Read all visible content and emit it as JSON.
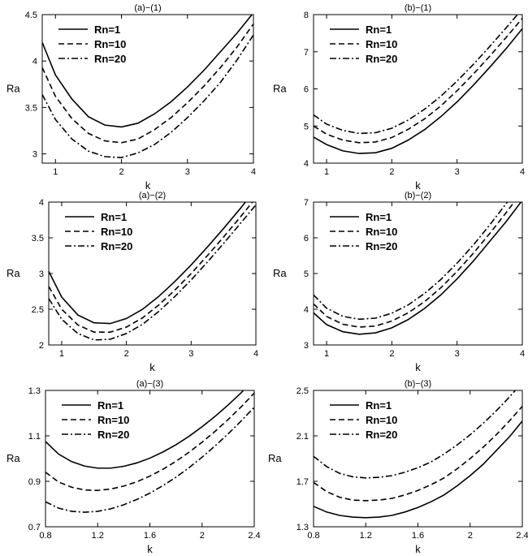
{
  "chart_data": [
    {
      "type": "line",
      "title": "(a)−(1)",
      "xlabel": "k",
      "ylabel": "Ra",
      "xlim": [
        0.8,
        4
      ],
      "ylim": [
        2.9,
        4.5
      ],
      "xticks": [
        1,
        2,
        3,
        4
      ],
      "xtick_labels": [
        "1",
        "2",
        "3",
        "4"
      ],
      "yticks": [
        3,
        3.5,
        4,
        4.5
      ],
      "ytick_labels": [
        "3",
        "3.5",
        "4",
        "4.5"
      ],
      "legend": "top-left",
      "grid": false,
      "x": [
        0.8,
        1.0,
        1.25,
        1.5,
        1.75,
        2.0,
        2.25,
        2.5,
        2.75,
        3.0,
        3.25,
        3.5,
        3.75,
        4.0
      ],
      "series": [
        {
          "name": "Rn=1",
          "style": "solid",
          "values": [
            4.2,
            3.85,
            3.59,
            3.4,
            3.31,
            3.29,
            3.33,
            3.43,
            3.56,
            3.72,
            3.9,
            4.1,
            4.3,
            4.52
          ]
        },
        {
          "name": "Rn=10",
          "style": "dashed",
          "values": [
            3.93,
            3.62,
            3.38,
            3.22,
            3.14,
            3.12,
            3.16,
            3.26,
            3.39,
            3.55,
            3.73,
            3.93,
            4.15,
            4.4
          ]
        },
        {
          "name": "Rn=20",
          "style": "dashdot",
          "values": [
            3.64,
            3.37,
            3.16,
            3.03,
            2.97,
            2.96,
            3.01,
            3.1,
            3.23,
            3.39,
            3.57,
            3.77,
            4.01,
            4.28
          ]
        }
      ]
    },
    {
      "type": "line",
      "title": "(b)−(1)",
      "xlabel": "k",
      "ylabel": "Ra",
      "xlim": [
        0.8,
        4
      ],
      "ylim": [
        4,
        8
      ],
      "xticks": [
        1,
        2,
        3,
        4
      ],
      "xtick_labels": [
        "1",
        "2",
        "3",
        "4"
      ],
      "yticks": [
        4,
        5,
        6,
        7,
        8
      ],
      "ytick_labels": [
        "4",
        "5",
        "6",
        "7",
        "8"
      ],
      "legend": "top-left",
      "grid": false,
      "x": [
        0.8,
        1.0,
        1.25,
        1.5,
        1.75,
        2.0,
        2.25,
        2.5,
        2.75,
        3.0,
        3.25,
        3.5,
        3.75,
        4.0
      ],
      "series": [
        {
          "name": "Rn=1",
          "style": "solid",
          "values": [
            4.7,
            4.5,
            4.33,
            4.26,
            4.28,
            4.4,
            4.62,
            4.9,
            5.25,
            5.65,
            6.1,
            6.58,
            7.08,
            7.62
          ]
        },
        {
          "name": "Rn=10",
          "style": "dashed",
          "values": [
            5.0,
            4.78,
            4.62,
            4.55,
            4.57,
            4.69,
            4.91,
            5.19,
            5.54,
            5.95,
            6.4,
            6.88,
            7.38,
            7.9
          ]
        },
        {
          "name": "Rn=20",
          "style": "dashdot",
          "values": [
            5.3,
            5.05,
            4.88,
            4.8,
            4.82,
            4.94,
            5.16,
            5.45,
            5.8,
            6.21,
            6.66,
            7.14,
            7.64,
            8.15
          ]
        }
      ]
    },
    {
      "type": "line",
      "title": "(a)−(2)",
      "xlabel": "k",
      "ylabel": "Ra",
      "xlim": [
        0.8,
        4
      ],
      "ylim": [
        2,
        4
      ],
      "xticks": [
        1,
        2,
        3,
        4
      ],
      "xtick_labels": [
        "1",
        "2",
        "3",
        "4"
      ],
      "yticks": [
        2,
        2.5,
        3,
        3.5,
        4
      ],
      "ytick_labels": [
        "2",
        "2.5",
        "3",
        "3.5",
        "4"
      ],
      "legend": "top-left",
      "grid": false,
      "x": [
        0.8,
        1.0,
        1.25,
        1.5,
        1.75,
        2.0,
        2.25,
        2.5,
        2.75,
        3.0,
        3.25,
        3.5,
        3.75,
        4.0
      ],
      "series": [
        {
          "name": "Rn=1",
          "style": "solid",
          "values": [
            3.03,
            2.67,
            2.42,
            2.31,
            2.3,
            2.37,
            2.5,
            2.68,
            2.89,
            3.12,
            3.37,
            3.63,
            3.9,
            4.18
          ]
        },
        {
          "name": "Rn=10",
          "style": "dashed",
          "values": [
            2.82,
            2.5,
            2.28,
            2.18,
            2.18,
            2.25,
            2.38,
            2.56,
            2.77,
            3.0,
            3.25,
            3.51,
            3.78,
            4.06
          ]
        },
        {
          "name": "Rn=20",
          "style": "dashdot",
          "values": [
            2.65,
            2.36,
            2.16,
            2.07,
            2.08,
            2.16,
            2.29,
            2.47,
            2.68,
            2.91,
            3.16,
            3.42,
            3.69,
            3.96
          ]
        }
      ]
    },
    {
      "type": "line",
      "title": "(b)−(2)",
      "xlabel": "k",
      "ylabel": "Ra",
      "xlim": [
        0.8,
        4
      ],
      "ylim": [
        3,
        7
      ],
      "xticks": [
        1,
        2,
        3,
        4
      ],
      "xtick_labels": [
        "1",
        "2",
        "3",
        "4"
      ],
      "yticks": [
        3,
        4,
        5,
        6,
        7
      ],
      "ytick_labels": [
        "3",
        "4",
        "5",
        "6",
        "7"
      ],
      "legend": "top-left",
      "grid": false,
      "x": [
        0.8,
        1.0,
        1.25,
        1.5,
        1.75,
        2.0,
        2.25,
        2.5,
        2.75,
        3.0,
        3.25,
        3.5,
        3.75,
        4.0
      ],
      "series": [
        {
          "name": "Rn=1",
          "style": "solid",
          "values": [
            3.9,
            3.57,
            3.37,
            3.3,
            3.34,
            3.48,
            3.71,
            4.02,
            4.4,
            4.85,
            5.35,
            5.9,
            6.45,
            7.05
          ]
        },
        {
          "name": "Rn=10",
          "style": "dashed",
          "values": [
            4.15,
            3.8,
            3.58,
            3.5,
            3.53,
            3.67,
            3.9,
            4.21,
            4.6,
            5.06,
            5.57,
            6.12,
            6.7,
            7.3
          ]
        },
        {
          "name": "Rn=20",
          "style": "dashdot",
          "values": [
            4.4,
            4.03,
            3.8,
            3.72,
            3.75,
            3.89,
            4.12,
            4.44,
            4.83,
            5.29,
            5.8,
            6.36,
            6.95,
            7.55
          ]
        }
      ]
    },
    {
      "type": "line",
      "title": "(a)−(3)",
      "xlabel": "k",
      "ylabel": "Ra",
      "xlim": [
        0.8,
        2.4
      ],
      "ylim": [
        0.7,
        1.3
      ],
      "xticks": [
        0.8,
        1.2,
        1.6,
        2.0,
        2.4
      ],
      "xtick_labels": [
        "0.8",
        "1.2",
        "1.6",
        "2",
        "2.4"
      ],
      "yticks": [
        0.7,
        0.9,
        1.1,
        1.3
      ],
      "ytick_labels": [
        "0.7",
        "0.9",
        "1.1",
        "1.3"
      ],
      "legend": "top-left",
      "grid": false,
      "x": [
        0.8,
        0.9,
        1.0,
        1.1,
        1.2,
        1.3,
        1.4,
        1.5,
        1.6,
        1.7,
        1.8,
        1.9,
        2.0,
        2.1,
        2.2,
        2.3,
        2.4
      ],
      "series": [
        {
          "name": "Rn=1",
          "style": "solid",
          "values": [
            1.075,
            1.02,
            0.987,
            0.967,
            0.958,
            0.958,
            0.966,
            0.981,
            1.002,
            1.029,
            1.061,
            1.098,
            1.14,
            1.186,
            1.236,
            1.29,
            1.35
          ]
        },
        {
          "name": "Rn=10",
          "style": "dashed",
          "values": [
            0.94,
            0.897,
            0.874,
            0.862,
            0.86,
            0.866,
            0.879,
            0.898,
            0.923,
            0.953,
            0.988,
            1.028,
            1.072,
            1.12,
            1.172,
            1.228,
            1.288
          ]
        },
        {
          "name": "Rn=20",
          "style": "dashdot",
          "values": [
            0.81,
            0.782,
            0.768,
            0.764,
            0.768,
            0.779,
            0.797,
            0.82,
            0.848,
            0.881,
            0.918,
            0.96,
            1.006,
            1.056,
            1.109,
            1.166,
            1.226
          ]
        }
      ]
    },
    {
      "type": "line",
      "title": "(b)−(3)",
      "xlabel": "k",
      "ylabel": "Ra",
      "xlim": [
        0.8,
        2.4
      ],
      "ylim": [
        1.3,
        2.5
      ],
      "xticks": [
        0.8,
        1.2,
        1.6,
        2.0,
        2.4
      ],
      "xtick_labels": [
        "0.8",
        "1.2",
        "1.6",
        "2",
        "2.4"
      ],
      "yticks": [
        1.3,
        1.7,
        2.1,
        2.5
      ],
      "ytick_labels": [
        "1.3",
        "1.7",
        "2.1",
        "2.5"
      ],
      "legend": "top-left",
      "grid": false,
      "x": [
        0.8,
        0.9,
        1.0,
        1.1,
        1.2,
        1.3,
        1.4,
        1.5,
        1.6,
        1.7,
        1.8,
        1.9,
        2.0,
        2.1,
        2.2,
        2.3,
        2.4
      ],
      "series": [
        {
          "name": "Rn=1",
          "style": "solid",
          "values": [
            1.48,
            1.43,
            1.4,
            1.385,
            1.38,
            1.385,
            1.4,
            1.43,
            1.47,
            1.52,
            1.58,
            1.66,
            1.75,
            1.85,
            1.97,
            2.09,
            2.23
          ]
        },
        {
          "name": "Rn=10",
          "style": "dashed",
          "values": [
            1.69,
            1.61,
            1.56,
            1.535,
            1.53,
            1.535,
            1.55,
            1.58,
            1.62,
            1.67,
            1.73,
            1.81,
            1.9,
            2.0,
            2.11,
            2.23,
            2.36
          ]
        },
        {
          "name": "Rn=20",
          "style": "dashdot",
          "values": [
            1.92,
            1.83,
            1.77,
            1.74,
            1.73,
            1.735,
            1.75,
            1.78,
            1.82,
            1.87,
            1.94,
            2.02,
            2.11,
            2.21,
            2.32,
            2.44,
            2.57
          ]
        }
      ]
    }
  ]
}
